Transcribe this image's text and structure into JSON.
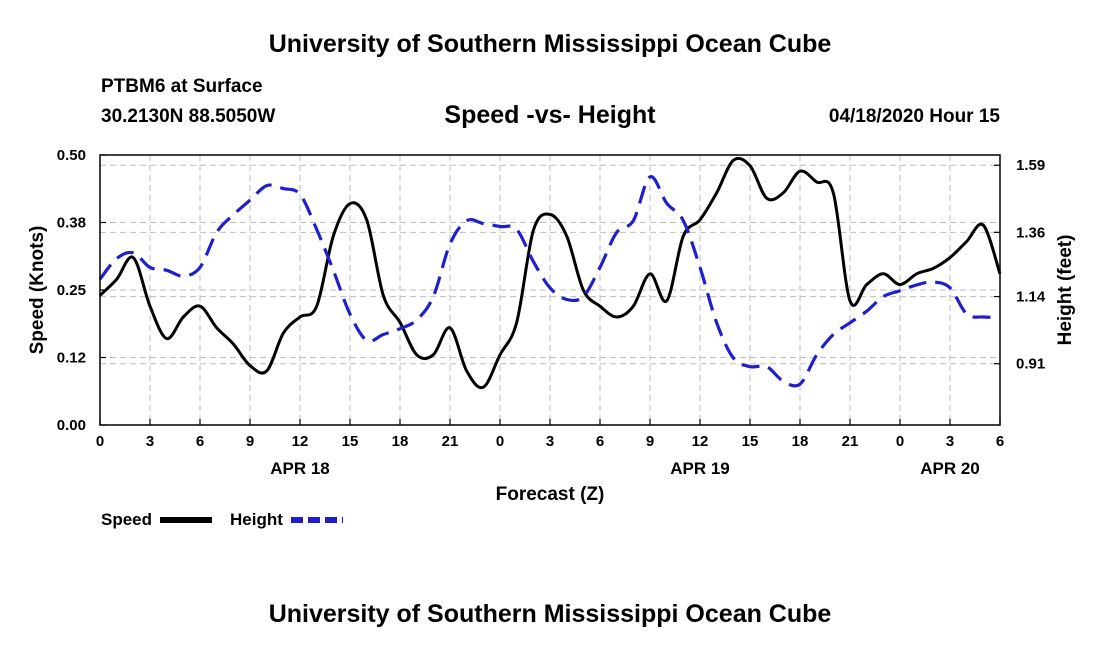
{
  "header": {
    "org_title": "University of Southern Mississippi Ocean Cube",
    "station": "PTBM6 at Surface",
    "coords": "30.2130N 88.5050W",
    "chart_title": "Speed -vs- Height",
    "datetime": "04/18/2020 Hour 15"
  },
  "footer": {
    "org_title": "University of Southern Mississippi Ocean Cube"
  },
  "colors": {
    "speed": "#000000",
    "height": "#1f1fcc",
    "grid": "#bdbdbd"
  },
  "chart_data": {
    "type": "line",
    "title": "Speed -vs- Height",
    "xlabel": "Forecast (Z)",
    "ylabel": "Speed (Knots)",
    "y2label": "Height (feet)",
    "xlim": [
      0,
      54
    ],
    "ylim": [
      0,
      0.5
    ],
    "y2lim": [
      0.7,
      1.625
    ],
    "x_ticks": [
      0,
      3,
      6,
      9,
      12,
      15,
      18,
      21,
      24,
      27,
      30,
      33,
      36,
      39,
      42,
      45,
      48,
      51,
      54
    ],
    "x_tick_labels": [
      "0",
      "3",
      "6",
      "9",
      "12",
      "15",
      "18",
      "21",
      "0",
      "3",
      "6",
      "9",
      "12",
      "15",
      "18",
      "21",
      "0",
      "3",
      "6"
    ],
    "y_ticks": [
      0,
      0.125,
      0.25,
      0.375,
      0.5
    ],
    "y_tick_labels": [
      "0.00",
      "0.12",
      "0.25",
      "0.38",
      "0.50"
    ],
    "y2_ticks": [
      0.91,
      1.14,
      1.36,
      1.59
    ],
    "y2_tick_labels": [
      "0.91",
      "1.14",
      "1.36",
      "1.59"
    ],
    "date_labels": [
      {
        "label": "APR 18",
        "x": 12
      },
      {
        "label": "APR 19",
        "x": 36
      },
      {
        "label": "APR 20",
        "x": 51
      }
    ],
    "series": [
      {
        "name": "Speed",
        "axis": "left",
        "style": "solid",
        "x": [
          0,
          1,
          2,
          3,
          4,
          5,
          6,
          7,
          8,
          9,
          10,
          11,
          12,
          13,
          14,
          15,
          16,
          17,
          18,
          19,
          20,
          21,
          22,
          23,
          24,
          25,
          26,
          27,
          28,
          29,
          30,
          31,
          32,
          33,
          34,
          35,
          36,
          37,
          38,
          39,
          40,
          41,
          42,
          43,
          44,
          45,
          46,
          47,
          48,
          49,
          50,
          51,
          52,
          53,
          54
        ],
        "values": [
          0.24,
          0.27,
          0.31,
          0.22,
          0.16,
          0.2,
          0.22,
          0.18,
          0.15,
          0.11,
          0.1,
          0.17,
          0.2,
          0.22,
          0.35,
          0.41,
          0.38,
          0.24,
          0.19,
          0.13,
          0.13,
          0.18,
          0.1,
          0.07,
          0.13,
          0.19,
          0.36,
          0.39,
          0.35,
          0.25,
          0.22,
          0.2,
          0.22,
          0.28,
          0.23,
          0.35,
          0.38,
          0.43,
          0.49,
          0.48,
          0.42,
          0.43,
          0.47,
          0.45,
          0.43,
          0.23,
          0.26,
          0.28,
          0.26,
          0.28,
          0.29,
          0.31,
          0.34,
          0.37,
          0.28
        ]
      },
      {
        "name": "Height",
        "axis": "right",
        "style": "dashed",
        "x": [
          0,
          1,
          2,
          3,
          4,
          5,
          6,
          7,
          8,
          9,
          10,
          11,
          12,
          13,
          14,
          15,
          16,
          17,
          18,
          19,
          20,
          21,
          22,
          23,
          24,
          25,
          26,
          27,
          28,
          29,
          30,
          31,
          32,
          33,
          34,
          35,
          36,
          37,
          38,
          39,
          40,
          41,
          42,
          43,
          44,
          45,
          46,
          47,
          48,
          49,
          50,
          51,
          52,
          53,
          54
        ],
        "values": [
          1.2,
          1.27,
          1.29,
          1.24,
          1.23,
          1.21,
          1.24,
          1.36,
          1.42,
          1.47,
          1.52,
          1.51,
          1.49,
          1.37,
          1.23,
          1.08,
          0.99,
          1.01,
          1.03,
          1.06,
          1.14,
          1.32,
          1.4,
          1.39,
          1.38,
          1.37,
          1.26,
          1.17,
          1.13,
          1.14,
          1.24,
          1.36,
          1.4,
          1.55,
          1.46,
          1.4,
          1.24,
          1.05,
          0.93,
          0.9,
          0.9,
          0.85,
          0.84,
          0.94,
          1.01,
          1.05,
          1.09,
          1.14,
          1.16,
          1.18,
          1.19,
          1.17,
          1.08,
          1.07,
          1.07
        ]
      }
    ],
    "legend": {
      "placement": "bottom-left",
      "items": [
        {
          "label": "Speed",
          "series": "Speed"
        },
        {
          "label": "Height",
          "series": "Height"
        }
      ]
    }
  }
}
